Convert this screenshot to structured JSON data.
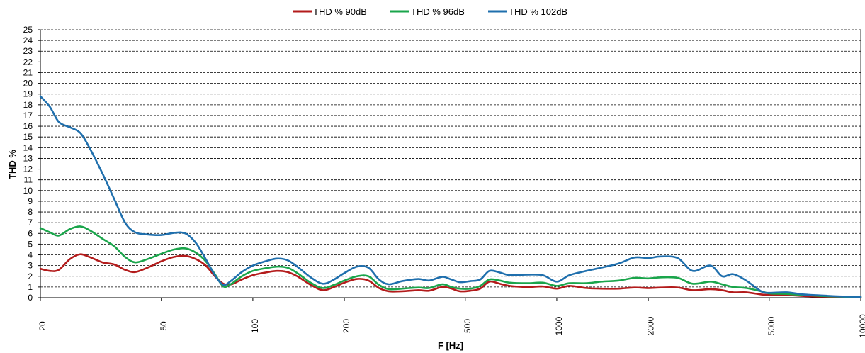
{
  "chart_data": {
    "type": "line",
    "title": "",
    "xlabel": "F [Hz]",
    "ylabel": "THD %",
    "xscale": "log",
    "xlim": [
      20,
      10000
    ],
    "ylim": [
      0,
      25
    ],
    "grid": "horizontal dashed",
    "legend_position": "top-center",
    "x_ticks": [
      20,
      50,
      100,
      200,
      500,
      1000,
      2000,
      5000,
      10000
    ],
    "y_ticks": [
      0,
      1,
      2,
      3,
      4,
      5,
      6,
      7,
      8,
      9,
      10,
      11,
      12,
      13,
      14,
      15,
      16,
      17,
      18,
      19,
      20,
      21,
      22,
      23,
      24,
      25
    ],
    "series": [
      {
        "name": "THD % 90dB",
        "color": "#b31b1b",
        "points": [
          [
            20,
            2.7
          ],
          [
            21.5,
            2.5
          ],
          [
            23,
            2.6
          ],
          [
            25,
            3.6
          ],
          [
            27,
            4.05
          ],
          [
            29,
            3.8
          ],
          [
            32,
            3.3
          ],
          [
            35,
            3.1
          ],
          [
            38,
            2.6
          ],
          [
            41,
            2.4
          ],
          [
            45,
            2.8
          ],
          [
            50,
            3.4
          ],
          [
            55,
            3.8
          ],
          [
            60,
            3.9
          ],
          [
            65,
            3.6
          ],
          [
            70,
            3.0
          ],
          [
            75,
            2.0
          ],
          [
            80,
            1.3
          ],
          [
            85,
            1.25
          ],
          [
            92,
            1.7
          ],
          [
            100,
            2.1
          ],
          [
            110,
            2.35
          ],
          [
            120,
            2.5
          ],
          [
            130,
            2.4
          ],
          [
            140,
            2.0
          ],
          [
            155,
            1.2
          ],
          [
            170,
            0.7
          ],
          [
            185,
            1.0
          ],
          [
            200,
            1.4
          ],
          [
            220,
            1.75
          ],
          [
            240,
            1.6
          ],
          [
            260,
            0.9
          ],
          [
            280,
            0.6
          ],
          [
            310,
            0.6
          ],
          [
            350,
            0.7
          ],
          [
            380,
            0.65
          ],
          [
            420,
            1.0
          ],
          [
            450,
            0.85
          ],
          [
            480,
            0.6
          ],
          [
            520,
            0.65
          ],
          [
            560,
            0.85
          ],
          [
            600,
            1.5
          ],
          [
            650,
            1.3
          ],
          [
            700,
            1.1
          ],
          [
            800,
            1.0
          ],
          [
            900,
            1.05
          ],
          [
            1000,
            0.85
          ],
          [
            1100,
            1.1
          ],
          [
            1250,
            0.9
          ],
          [
            1400,
            0.85
          ],
          [
            1600,
            0.85
          ],
          [
            1800,
            0.95
          ],
          [
            2000,
            0.9
          ],
          [
            2200,
            0.95
          ],
          [
            2500,
            0.95
          ],
          [
            2800,
            0.7
          ],
          [
            3200,
            0.8
          ],
          [
            3500,
            0.7
          ],
          [
            3800,
            0.5
          ],
          [
            4200,
            0.5
          ],
          [
            4700,
            0.3
          ],
          [
            5000,
            0.25
          ],
          [
            5700,
            0.25
          ],
          [
            6500,
            0.15
          ],
          [
            7500,
            0.1
          ],
          [
            8500,
            0.08
          ],
          [
            10000,
            0.05
          ]
        ]
      },
      {
        "name": "THD % 96dB",
        "color": "#1aa54b",
        "points": [
          [
            20,
            6.5
          ],
          [
            21.5,
            6.1
          ],
          [
            23,
            5.8
          ],
          [
            25,
            6.4
          ],
          [
            27,
            6.65
          ],
          [
            29,
            6.3
          ],
          [
            32,
            5.5
          ],
          [
            35,
            4.8
          ],
          [
            38,
            3.8
          ],
          [
            41,
            3.3
          ],
          [
            45,
            3.6
          ],
          [
            50,
            4.1
          ],
          [
            55,
            4.5
          ],
          [
            60,
            4.6
          ],
          [
            65,
            4.2
          ],
          [
            70,
            3.4
          ],
          [
            75,
            2.2
          ],
          [
            80,
            1.05
          ],
          [
            85,
            1.3
          ],
          [
            92,
            2.0
          ],
          [
            100,
            2.5
          ],
          [
            110,
            2.75
          ],
          [
            120,
            2.9
          ],
          [
            130,
            2.8
          ],
          [
            140,
            2.3
          ],
          [
            155,
            1.4
          ],
          [
            170,
            0.9
          ],
          [
            185,
            1.2
          ],
          [
            200,
            1.6
          ],
          [
            220,
            2.0
          ],
          [
            240,
            2.0
          ],
          [
            260,
            1.2
          ],
          [
            280,
            0.8
          ],
          [
            310,
            0.85
          ],
          [
            350,
            0.95
          ],
          [
            380,
            0.9
          ],
          [
            420,
            1.25
          ],
          [
            450,
            1.0
          ],
          [
            480,
            0.85
          ],
          [
            520,
            0.85
          ],
          [
            560,
            1.1
          ],
          [
            600,
            1.7
          ],
          [
            650,
            1.6
          ],
          [
            700,
            1.4
          ],
          [
            800,
            1.35
          ],
          [
            900,
            1.4
          ],
          [
            1000,
            1.1
          ],
          [
            1100,
            1.35
          ],
          [
            1250,
            1.35
          ],
          [
            1400,
            1.5
          ],
          [
            1600,
            1.6
          ],
          [
            1800,
            1.85
          ],
          [
            2000,
            1.8
          ],
          [
            2200,
            1.9
          ],
          [
            2500,
            1.85
          ],
          [
            2800,
            1.3
          ],
          [
            3200,
            1.5
          ],
          [
            3500,
            1.25
          ],
          [
            3800,
            1.0
          ],
          [
            4200,
            0.9
          ],
          [
            4700,
            0.6
          ],
          [
            5000,
            0.4
          ],
          [
            5700,
            0.35
          ],
          [
            6500,
            0.25
          ],
          [
            7500,
            0.15
          ],
          [
            8500,
            0.1
          ],
          [
            10000,
            0.05
          ]
        ]
      },
      {
        "name": "THD % 102dB",
        "color": "#1f6fad",
        "points": [
          [
            20,
            18.8
          ],
          [
            21.5,
            17.8
          ],
          [
            23,
            16.4
          ],
          [
            25,
            15.9
          ],
          [
            27,
            15.4
          ],
          [
            29,
            14.0
          ],
          [
            32,
            11.6
          ],
          [
            35,
            9.2
          ],
          [
            38,
            7.0
          ],
          [
            41,
            6.1
          ],
          [
            45,
            5.9
          ],
          [
            50,
            5.85
          ],
          [
            55,
            6.05
          ],
          [
            60,
            6.0
          ],
          [
            65,
            5.1
          ],
          [
            70,
            3.6
          ],
          [
            75,
            2.1
          ],
          [
            80,
            1.2
          ],
          [
            85,
            1.6
          ],
          [
            92,
            2.4
          ],
          [
            100,
            3.0
          ],
          [
            110,
            3.4
          ],
          [
            120,
            3.65
          ],
          [
            130,
            3.5
          ],
          [
            140,
            2.9
          ],
          [
            155,
            1.9
          ],
          [
            170,
            1.3
          ],
          [
            185,
            1.7
          ],
          [
            200,
            2.3
          ],
          [
            220,
            2.9
          ],
          [
            240,
            2.8
          ],
          [
            260,
            1.7
          ],
          [
            280,
            1.25
          ],
          [
            310,
            1.55
          ],
          [
            350,
            1.75
          ],
          [
            380,
            1.6
          ],
          [
            420,
            1.95
          ],
          [
            450,
            1.7
          ],
          [
            480,
            1.45
          ],
          [
            520,
            1.55
          ],
          [
            560,
            1.7
          ],
          [
            600,
            2.5
          ],
          [
            650,
            2.35
          ],
          [
            700,
            2.1
          ],
          [
            800,
            2.15
          ],
          [
            900,
            2.1
          ],
          [
            1000,
            1.5
          ],
          [
            1100,
            2.1
          ],
          [
            1250,
            2.5
          ],
          [
            1400,
            2.8
          ],
          [
            1600,
            3.2
          ],
          [
            1800,
            3.75
          ],
          [
            2000,
            3.7
          ],
          [
            2200,
            3.85
          ],
          [
            2500,
            3.7
          ],
          [
            2800,
            2.5
          ],
          [
            3200,
            3.0
          ],
          [
            3500,
            2.0
          ],
          [
            3800,
            2.2
          ],
          [
            4200,
            1.6
          ],
          [
            4700,
            0.6
          ],
          [
            5000,
            0.45
          ],
          [
            5700,
            0.5
          ],
          [
            6500,
            0.3
          ],
          [
            7500,
            0.2
          ],
          [
            8500,
            0.12
          ],
          [
            10000,
            0.08
          ]
        ]
      }
    ]
  }
}
